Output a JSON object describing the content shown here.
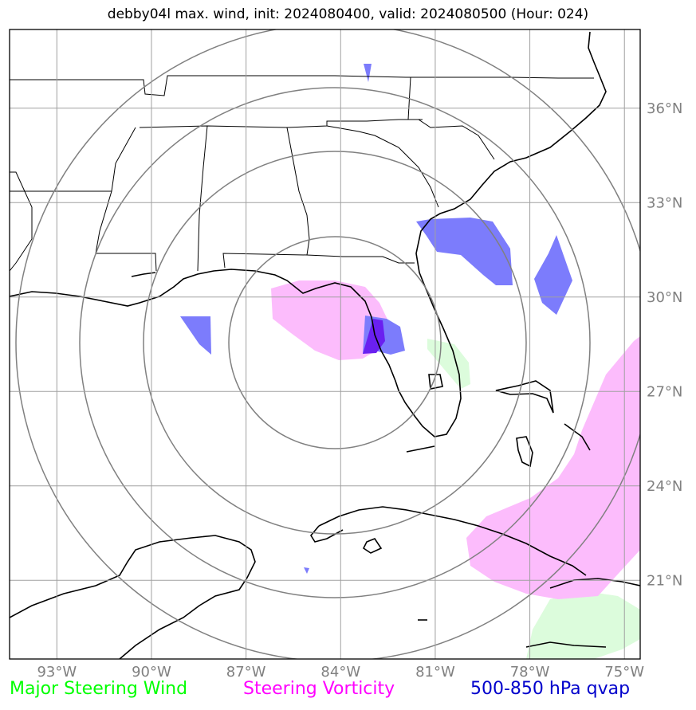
{
  "title": "debby04l max. wind, init: 2024080400, valid: 2024080500 (Hour: 024)",
  "map": {
    "lon_range": [
      -94.5,
      -74.5
    ],
    "lat_range": [
      18.5,
      38.5
    ],
    "lon_ticks": [
      {
        "value": -93,
        "label": "93°W"
      },
      {
        "value": -90,
        "label": "90°W"
      },
      {
        "value": -87,
        "label": "87°W"
      },
      {
        "value": -84,
        "label": "84°W"
      },
      {
        "value": -81,
        "label": "81°W"
      },
      {
        "value": -78,
        "label": "78°W"
      },
      {
        "value": -75,
        "label": "75°W"
      }
    ],
    "lat_ticks": [
      {
        "value": 21,
        "label": "21°N"
      },
      {
        "value": 24,
        "label": "24°N"
      },
      {
        "value": 27,
        "label": "27°N"
      },
      {
        "value": 30,
        "label": "30°N"
      },
      {
        "value": 33,
        "label": "33°N"
      },
      {
        "value": 36,
        "label": "36°N"
      }
    ],
    "grid": true,
    "range_rings_center": {
      "lon": -84,
      "lat": 28.3
    },
    "range_rings_radius_deg": [
      3,
      6,
      9,
      12
    ]
  },
  "layers": {
    "steering_wind": {
      "color": "#00ff00",
      "fill": "#dcfcdc"
    },
    "steering_vorticity": {
      "color": "#ff00ff",
      "fill": "#fcbcfc"
    },
    "qvap": {
      "color": "#0000cc",
      "fill": "#7c7cfc"
    }
  },
  "legend": [
    {
      "label": "Major Steering Wind",
      "color": "#00ff00"
    },
    {
      "label": "Steering Vorticity",
      "color": "#ff00ff"
    },
    {
      "label": "500-850 hPa qvap",
      "color": "#0000cc"
    }
  ]
}
